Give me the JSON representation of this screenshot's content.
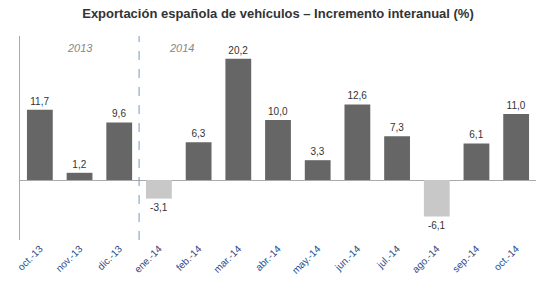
{
  "chart_data": {
    "type": "bar",
    "title": "Exportación española de vehículos – Incremento interanual (%)",
    "categories": [
      "oct.-13",
      "nov.-13",
      "dic.-13",
      "ene.-14",
      "feb.-14",
      "mar.-14",
      "abr.-14",
      "may.-14",
      "jun.-14",
      "jul.-14",
      "ago.-14",
      "sep.-14",
      "oct.-14"
    ],
    "values": [
      11.7,
      1.2,
      9.6,
      -3.1,
      6.3,
      20.2,
      10.0,
      3.3,
      12.6,
      7.3,
      -6.1,
      6.1,
      11.0
    ],
    "value_labels": [
      "11,7",
      "1,2",
      "9,6",
      "-3,1",
      "6,3",
      "20,2",
      "10,0",
      "3,3",
      "12,6",
      "7,3",
      "-6,1",
      "6,1",
      "11,0"
    ],
    "colors": [
      "#666666",
      "#666666",
      "#666666",
      "#c8c8c8",
      "#666666",
      "#666666",
      "#666666",
      "#666666",
      "#666666",
      "#666666",
      "#c8c8c8",
      "#666666",
      "#666666"
    ],
    "annotations": [
      "2013",
      "2014"
    ],
    "ylim": [
      -10,
      24
    ],
    "data_labels": true,
    "tick_labels": "x",
    "grid": false
  }
}
